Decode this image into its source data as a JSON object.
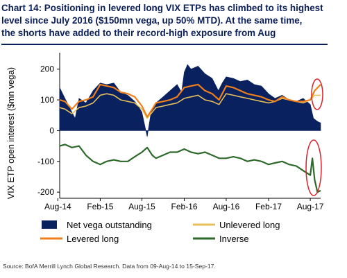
{
  "title": "Chart 14: Positioning in levered long VIX ETPs has climbed to its highest\nlevel since July 2016 ($150mn vega, up 50% MTD). At the same time,\nthe shorts have added to their record-high exposure from Aug",
  "source": "Source: BofA Merrill Lynch Global Research. Data from 09-Aug-14 to 15-Sep-17.",
  "colors": {
    "net": "#0a2160",
    "unlevered": "#e8c05a",
    "levered": "#ef7f1a",
    "inverse": "#2d6a2a",
    "highlight": "#d8232a",
    "title": "#0a1e57"
  },
  "chart_data": {
    "type": "area",
    "ylabel": "VIX ETP open interest ($mn vega)",
    "xlabel": "",
    "ylim": [
      -220,
      240
    ],
    "yticks": [
      200,
      100,
      0,
      -100,
      -200
    ],
    "xlim": [
      "2014-08-09",
      "2017-09-15"
    ],
    "xticks": [
      {
        "date": "2014-08-01",
        "label": "Aug-14"
      },
      {
        "date": "2015-02-01",
        "label": "Feb-15"
      },
      {
        "date": "2015-08-01",
        "label": "Aug-15"
      },
      {
        "date": "2016-02-01",
        "label": "Feb-16"
      },
      {
        "date": "2016-08-01",
        "label": "Aug-16"
      },
      {
        "date": "2017-02-01",
        "label": "Feb-17"
      },
      {
        "date": "2017-08-01",
        "label": "Aug-17"
      }
    ],
    "grid": false,
    "legend_position": "bottom",
    "highlight_circles": true,
    "series": [
      {
        "name": "Net vega outstanding",
        "kind": "area",
        "points": [
          [
            "2014-08-09",
            140
          ],
          [
            "2014-09-01",
            105
          ],
          [
            "2014-10-01",
            60
          ],
          [
            "2014-10-15",
            40
          ],
          [
            "2014-11-01",
            105
          ],
          [
            "2014-12-01",
            90
          ],
          [
            "2015-01-01",
            130
          ],
          [
            "2015-02-01",
            155
          ],
          [
            "2015-03-01",
            150
          ],
          [
            "2015-04-01",
            155
          ],
          [
            "2015-05-01",
            125
          ],
          [
            "2015-06-01",
            115
          ],
          [
            "2015-07-01",
            95
          ],
          [
            "2015-07-20",
            75
          ],
          [
            "2015-08-01",
            60
          ],
          [
            "2015-08-24",
            -20
          ],
          [
            "2015-09-10",
            60
          ],
          [
            "2015-10-01",
            90
          ],
          [
            "2015-11-01",
            110
          ],
          [
            "2015-12-01",
            130
          ],
          [
            "2016-01-01",
            150
          ],
          [
            "2016-01-20",
            125
          ],
          [
            "2016-02-01",
            190
          ],
          [
            "2016-02-15",
            215
          ],
          [
            "2016-03-01",
            200
          ],
          [
            "2016-04-01",
            210
          ],
          [
            "2016-05-01",
            185
          ],
          [
            "2016-06-01",
            170
          ],
          [
            "2016-06-28",
            130
          ],
          [
            "2016-07-15",
            155
          ],
          [
            "2016-08-01",
            175
          ],
          [
            "2016-09-01",
            170
          ],
          [
            "2016-10-01",
            160
          ],
          [
            "2016-11-01",
            165
          ],
          [
            "2016-12-01",
            150
          ],
          [
            "2017-01-01",
            145
          ],
          [
            "2017-02-01",
            120
          ],
          [
            "2017-03-01",
            105
          ],
          [
            "2017-04-01",
            115
          ],
          [
            "2017-05-01",
            100
          ],
          [
            "2017-06-01",
            95
          ],
          [
            "2017-07-01",
            105
          ],
          [
            "2017-08-01",
            85
          ],
          [
            "2017-08-15",
            40
          ],
          [
            "2017-09-01",
            30
          ],
          [
            "2017-09-15",
            25
          ]
        ]
      },
      {
        "name": "Unlevered long",
        "kind": "line",
        "points": [
          [
            "2014-08-09",
            75
          ],
          [
            "2014-09-01",
            70
          ],
          [
            "2014-10-01",
            55
          ],
          [
            "2014-11-01",
            75
          ],
          [
            "2014-12-01",
            80
          ],
          [
            "2015-01-01",
            90
          ],
          [
            "2015-02-01",
            115
          ],
          [
            "2015-03-01",
            120
          ],
          [
            "2015-04-01",
            115
          ],
          [
            "2015-05-01",
            100
          ],
          [
            "2015-06-01",
            95
          ],
          [
            "2015-07-01",
            90
          ],
          [
            "2015-08-01",
            70
          ],
          [
            "2015-08-24",
            40
          ],
          [
            "2015-09-15",
            60
          ],
          [
            "2015-10-01",
            75
          ],
          [
            "2015-11-01",
            80
          ],
          [
            "2015-12-01",
            85
          ],
          [
            "2016-01-01",
            90
          ],
          [
            "2016-02-01",
            105
          ],
          [
            "2016-03-01",
            110
          ],
          [
            "2016-04-01",
            115
          ],
          [
            "2016-05-01",
            100
          ],
          [
            "2016-06-01",
            95
          ],
          [
            "2016-07-01",
            85
          ],
          [
            "2016-08-01",
            120
          ],
          [
            "2016-09-01",
            115
          ],
          [
            "2016-10-01",
            110
          ],
          [
            "2016-11-01",
            105
          ],
          [
            "2016-12-01",
            100
          ],
          [
            "2017-01-01",
            95
          ],
          [
            "2017-02-01",
            90
          ],
          [
            "2017-03-01",
            95
          ],
          [
            "2017-04-01",
            105
          ],
          [
            "2017-05-01",
            100
          ],
          [
            "2017-06-01",
            95
          ],
          [
            "2017-07-01",
            90
          ],
          [
            "2017-08-01",
            100
          ],
          [
            "2017-08-20",
            115
          ],
          [
            "2017-09-15",
            115
          ]
        ]
      },
      {
        "name": "Levered long",
        "kind": "line",
        "points": [
          [
            "2014-08-09",
            100
          ],
          [
            "2014-09-01",
            95
          ],
          [
            "2014-10-01",
            70
          ],
          [
            "2014-11-01",
            95
          ],
          [
            "2014-12-01",
            100
          ],
          [
            "2015-01-01",
            110
          ],
          [
            "2015-02-01",
            150
          ],
          [
            "2015-03-01",
            145
          ],
          [
            "2015-04-01",
            140
          ],
          [
            "2015-05-01",
            125
          ],
          [
            "2015-06-01",
            120
          ],
          [
            "2015-07-01",
            110
          ],
          [
            "2015-08-01",
            80
          ],
          [
            "2015-08-24",
            45
          ],
          [
            "2015-09-15",
            70
          ],
          [
            "2015-10-01",
            90
          ],
          [
            "2015-11-01",
            95
          ],
          [
            "2015-12-01",
            100
          ],
          [
            "2016-01-01",
            110
          ],
          [
            "2016-02-01",
            140
          ],
          [
            "2016-03-01",
            145
          ],
          [
            "2016-04-01",
            150
          ],
          [
            "2016-05-01",
            130
          ],
          [
            "2016-06-01",
            120
          ],
          [
            "2016-07-01",
            100
          ],
          [
            "2016-08-01",
            145
          ],
          [
            "2016-09-01",
            140
          ],
          [
            "2016-10-01",
            130
          ],
          [
            "2016-11-01",
            120
          ],
          [
            "2016-12-01",
            115
          ],
          [
            "2017-01-01",
            110
          ],
          [
            "2017-02-01",
            100
          ],
          [
            "2017-03-01",
            95
          ],
          [
            "2017-04-01",
            110
          ],
          [
            "2017-05-01",
            100
          ],
          [
            "2017-06-01",
            95
          ],
          [
            "2017-07-01",
            95
          ],
          [
            "2017-08-01",
            100
          ],
          [
            "2017-08-20",
            130
          ],
          [
            "2017-09-15",
            150
          ]
        ]
      },
      {
        "name": "Inverse",
        "kind": "line",
        "points": [
          [
            "2014-08-09",
            -50
          ],
          [
            "2014-09-01",
            -45
          ],
          [
            "2014-10-01",
            -55
          ],
          [
            "2014-11-01",
            -50
          ],
          [
            "2014-12-01",
            -80
          ],
          [
            "2015-01-01",
            -100
          ],
          [
            "2015-02-01",
            -110
          ],
          [
            "2015-03-01",
            -100
          ],
          [
            "2015-04-01",
            -95
          ],
          [
            "2015-05-01",
            -100
          ],
          [
            "2015-06-01",
            -100
          ],
          [
            "2015-07-01",
            -85
          ],
          [
            "2015-08-01",
            -70
          ],
          [
            "2015-08-24",
            -55
          ],
          [
            "2015-09-15",
            -80
          ],
          [
            "2015-10-01",
            -90
          ],
          [
            "2015-11-01",
            -80
          ],
          [
            "2015-12-01",
            -70
          ],
          [
            "2016-01-01",
            -70
          ],
          [
            "2016-02-01",
            -60
          ],
          [
            "2016-03-01",
            -70
          ],
          [
            "2016-04-01",
            -75
          ],
          [
            "2016-05-01",
            -70
          ],
          [
            "2016-06-01",
            -80
          ],
          [
            "2016-07-01",
            -90
          ],
          [
            "2016-08-01",
            -90
          ],
          [
            "2016-09-01",
            -85
          ],
          [
            "2016-10-01",
            -90
          ],
          [
            "2016-11-01",
            -100
          ],
          [
            "2016-12-01",
            -95
          ],
          [
            "2017-01-01",
            -100
          ],
          [
            "2017-02-01",
            -110
          ],
          [
            "2017-03-01",
            -105
          ],
          [
            "2017-04-01",
            -100
          ],
          [
            "2017-05-01",
            -110
          ],
          [
            "2017-06-01",
            -115
          ],
          [
            "2017-07-01",
            -130
          ],
          [
            "2017-08-01",
            -145
          ],
          [
            "2017-08-10",
            -90
          ],
          [
            "2017-08-20",
            -160
          ],
          [
            "2017-09-01",
            -200
          ],
          [
            "2017-09-15",
            -195
          ]
        ]
      }
    ]
  }
}
